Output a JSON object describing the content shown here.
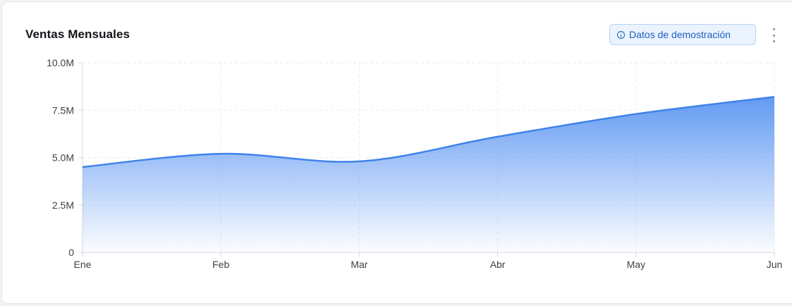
{
  "header": {
    "title": "Ventas Mensuales",
    "badge_label": "Datos de demostración",
    "badge_icon": "info-icon",
    "menu_icon": "kebab-menu-icon"
  },
  "colors": {
    "line": "#3f82ea",
    "fill_top": "#5a95f2",
    "grid": "#e8ebef",
    "axis": "#d4d8de"
  },
  "chart_data": {
    "type": "area",
    "categories": [
      "Ene",
      "Feb",
      "Mar",
      "Abr",
      "May",
      "Jun"
    ],
    "series": [
      {
        "values": [
          4500000,
          5200000,
          4800000,
          6100000,
          7300000,
          8200000
        ]
      }
    ],
    "y_ticks": [
      {
        "value": 0,
        "label": "0"
      },
      {
        "value": 2500000,
        "label": "2.5M"
      },
      {
        "value": 5000000,
        "label": "5.0M"
      },
      {
        "value": 7500000,
        "label": "7.5M"
      },
      {
        "value": 10000000,
        "label": "10.0M"
      }
    ],
    "ylim": [
      0,
      10000000
    ],
    "grid": true,
    "legend": "none"
  }
}
